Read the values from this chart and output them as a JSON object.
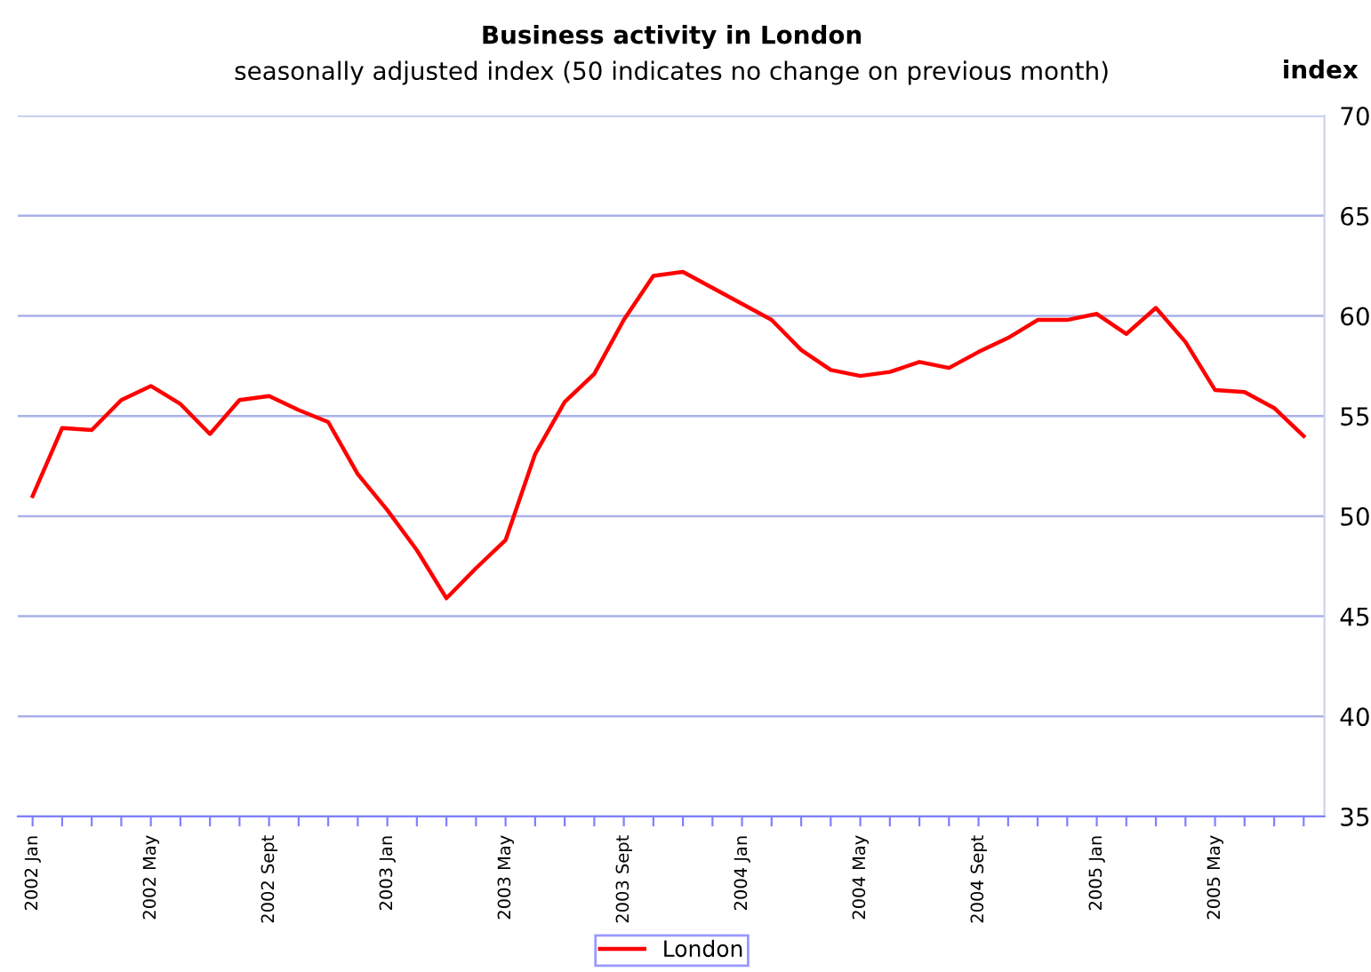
{
  "chart_data": {
    "type": "line",
    "title": "Business activity in London",
    "subtitle": "seasonally adjusted index (50 indicates no change on previous month)",
    "ylabel": "index",
    "categories": [
      "2002 Jan",
      null,
      null,
      null,
      "2002 May",
      null,
      null,
      null,
      "2002 Sept",
      null,
      null,
      null,
      "2003 Jan",
      null,
      null,
      null,
      "2003 May",
      null,
      null,
      null,
      "2003 Sept",
      null,
      null,
      null,
      "2004 Jan",
      null,
      null,
      null,
      "2004 May",
      null,
      null,
      null,
      "2004 Sept",
      null,
      null,
      null,
      "2005 Jan",
      null,
      null,
      null,
      "2005 May",
      null,
      null,
      null
    ],
    "series": [
      {
        "name": "London",
        "color": "#ff0000",
        "values": [
          51.0,
          54.4,
          54.3,
          55.8,
          56.5,
          55.6,
          54.1,
          55.8,
          56.0,
          55.3,
          54.7,
          52.1,
          50.3,
          48.3,
          45.9,
          47.4,
          48.8,
          53.1,
          55.7,
          57.1,
          59.8,
          62.0,
          62.2,
          61.4,
          60.6,
          59.8,
          58.3,
          57.3,
          57.0,
          57.2,
          57.7,
          57.4,
          58.2,
          58.9,
          59.8,
          59.8,
          60.1,
          59.1,
          60.4,
          58.7,
          56.3,
          56.2,
          55.4,
          54.0
        ]
      }
    ],
    "ylim": [
      35,
      70
    ],
    "yticks": [
      35,
      40,
      45,
      50,
      55,
      60,
      65,
      70
    ],
    "grid": "y",
    "legend": "bottom",
    "marker": "none",
    "line_style": "solid"
  }
}
